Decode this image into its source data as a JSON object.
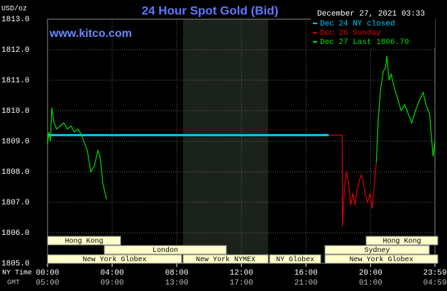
{
  "chart_data": {
    "type": "line",
    "title": "24 Hour Spot Gold (Bid)",
    "y_label": "USD/oz",
    "source": "www.kitco.com",
    "timestamp": "December 27, 2021 03:33",
    "xlabel": "NY Time",
    "x2label": "GMT",
    "xlim": [
      0,
      23.983
    ],
    "xticks": [
      {
        "value": 0,
        "label": "00:00"
      },
      {
        "value": 4,
        "label": "04:00"
      },
      {
        "value": 8,
        "label": "08:00"
      },
      {
        "value": 12,
        "label": "12:00"
      },
      {
        "value": 16,
        "label": "16:00"
      },
      {
        "value": 20,
        "label": "20:00"
      },
      {
        "value": 23.983,
        "label": "23:59"
      }
    ],
    "gmt_ticks": [
      "05:00",
      "09:00",
      "13:00",
      "17:00",
      "21:00",
      "01:00",
      "04:59"
    ],
    "ylim": [
      1805,
      1813
    ],
    "yticks": [
      {
        "value": 1805,
        "label": "1805.0"
      },
      {
        "value": 1806,
        "label": "1806.0"
      },
      {
        "value": 1807,
        "label": "1807.0"
      },
      {
        "value": 1808,
        "label": "1808.0"
      },
      {
        "value": 1809,
        "label": "1809.0"
      },
      {
        "value": 1810,
        "label": "1810.0"
      },
      {
        "value": 1811,
        "label": "1811.0"
      },
      {
        "value": 1812,
        "label": "1812.0"
      },
      {
        "value": 1813,
        "label": "1813.0"
      }
    ],
    "grid": true,
    "series": [
      {
        "name": "Dec 24 NY closed",
        "color": "#00c8ff",
        "x": [
          0,
          17.41
        ],
        "values": [
          1809.2,
          1809.2
        ]
      },
      {
        "name": "Dec 26 Sunday",
        "color": "#e00000",
        "x": [
          17.41,
          18.24,
          18.26,
          18.37,
          18.51,
          18.64,
          18.77,
          18.9,
          19.03,
          19.16,
          19.3,
          19.43,
          19.56,
          19.69,
          19.82,
          19.96,
          20.09,
          20.22,
          20.35
        ],
        "values": [
          1809.2,
          1809.2,
          1806.2,
          1807.4,
          1808.0,
          1807.6,
          1806.9,
          1807.3,
          1806.9,
          1807.4,
          1807.7,
          1807.9,
          1807.6,
          1807.2,
          1807.0,
          1807.3,
          1806.8,
          1807.5,
          1808.3
        ]
      },
      {
        "name": "Dec 27 Last 1806.70",
        "color": "#00e000",
        "x": [
          0,
          0.09,
          0.18,
          0.26,
          0.4,
          0.57,
          0.79,
          1.01,
          1.23,
          1.45,
          1.67,
          1.89,
          2.11,
          2.24,
          2.46,
          2.68,
          2.9,
          3.12,
          3.25,
          3.43,
          3.65,
          10,
          20.35,
          20.48,
          20.62,
          20.79,
          20.92,
          21.01,
          21.14,
          21.27,
          21.45,
          21.67,
          21.89,
          22.11,
          22.33,
          22.55,
          22.77,
          22.99,
          23.25,
          23.43,
          23.65,
          23.87,
          23.98
        ],
        "values": [
          1808.9,
          1809.3,
          1809.0,
          1810.1,
          1809.6,
          1809.4,
          1809.5,
          1809.6,
          1809.4,
          1809.5,
          1809.3,
          1809.4,
          1809.2,
          1809.0,
          1808.7,
          1808.0,
          1808.2,
          1808.7,
          1808.5,
          1807.6,
          1807.1,
          null,
          1808.3,
          1809.8,
          1810.7,
          1811.3,
          1811.4,
          1811.8,
          1811.0,
          1811.2,
          1810.8,
          1810.4,
          1810.0,
          1810.2,
          1809.9,
          1809.6,
          1810.0,
          1810.3,
          1810.6,
          1810.2,
          1809.9,
          1808.5,
          1809.0
        ]
      }
    ],
    "sessions": [
      "Hong Kong",
      "Hong Kong",
      "London",
      "Sydney",
      "New York Globex",
      "New York NYMEX",
      "NY Globex",
      "New York Globex"
    ]
  }
}
